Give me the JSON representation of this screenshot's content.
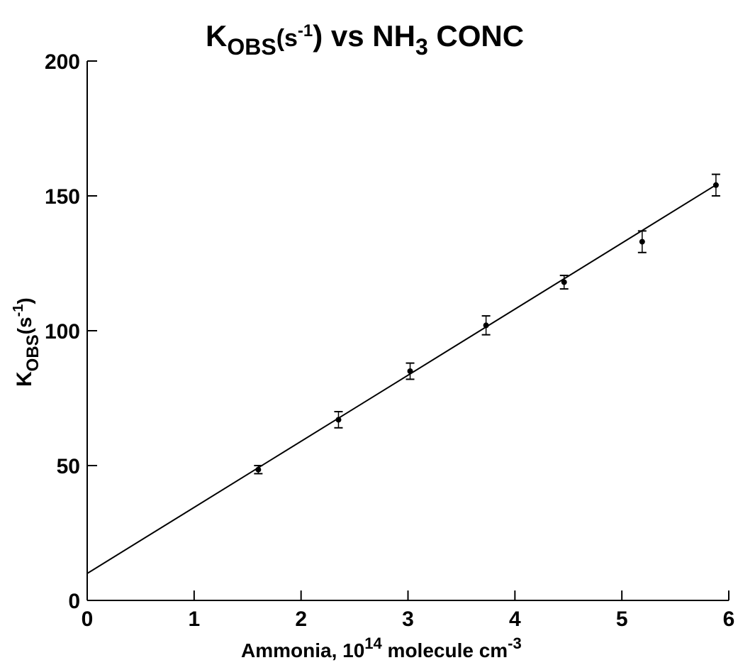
{
  "chart_data": {
    "type": "scatter",
    "title": {
      "main": "K",
      "main_sub": "OBS",
      "paren_open": "(s",
      "paren_sup": "-1",
      "rest": ") vs NH",
      "rest_sub": "3",
      "tail": " CONC"
    },
    "xlabel": {
      "main": "Ammonia, 10",
      "sup": "14",
      "rest": " molecule cm",
      "rest_sup": "-3"
    },
    "ylabel": {
      "main": "K",
      "sub": "OBS",
      "paren": "(s",
      "sup": "-1",
      "close": ")"
    },
    "xlim": [
      0,
      6
    ],
    "ylim": [
      0,
      200
    ],
    "x_ticks": [
      0,
      1,
      2,
      3,
      4,
      5,
      6
    ],
    "y_ticks": [
      0,
      50,
      100,
      150,
      200
    ],
    "grid": false,
    "series": [
      {
        "points": [
          {
            "x": 1.6,
            "y": 48.5,
            "err": 1.5
          },
          {
            "x": 2.35,
            "y": 67,
            "err": 3
          },
          {
            "x": 3.02,
            "y": 85,
            "err": 3
          },
          {
            "x": 3.73,
            "y": 102,
            "err": 3.5
          },
          {
            "x": 4.46,
            "y": 118,
            "err": 2.5
          },
          {
            "x": 5.19,
            "y": 133,
            "err": 4
          },
          {
            "x": 5.88,
            "y": 154,
            "err": 4
          }
        ]
      }
    ],
    "fit_line": {
      "intercept": 10,
      "slope": 24.5,
      "x_range": [
        0,
        5.9
      ]
    }
  }
}
